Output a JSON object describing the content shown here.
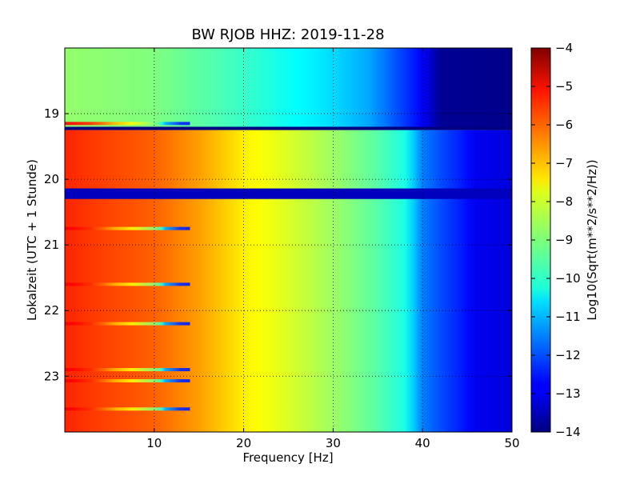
{
  "chart_data": {
    "type": "heatmap",
    "title": "BW RJOB HHZ: 2019-11-28",
    "xlabel": "Frequency [Hz]",
    "ylabel": "Lokalzeit (UTC + 1 Stunde)",
    "colorbar_label": "Log10(Sqrt(m**2/s**2/Hz))",
    "colormap": "jet",
    "xlim": [
      0,
      50
    ],
    "ylim": [
      18.0,
      23.85
    ],
    "y_inverted": true,
    "grid": true,
    "x_ticks": [
      10,
      20,
      30,
      40,
      50
    ],
    "x_tick_labels": [
      "10",
      "20",
      "30",
      "40",
      "50"
    ],
    "y_ticks": [
      19,
      20,
      21,
      22,
      23
    ],
    "y_tick_labels": [
      "19",
      "20",
      "21",
      "22",
      "23"
    ],
    "colorbar_range": [
      -14,
      -4
    ],
    "colorbar_ticks": [
      -4,
      -5,
      -6,
      -7,
      -8,
      -9,
      -10,
      -11,
      -12,
      -13,
      -14
    ],
    "colorbar_tick_labels": [
      "−4",
      "−5",
      "−6",
      "−7",
      "−8",
      "−9",
      "−10",
      "−11",
      "−12",
      "−13",
      "−14"
    ],
    "profile_before_gap": {
      "time_range": [
        18.0,
        19.2
      ],
      "frequency": [
        0,
        10,
        20,
        30,
        34,
        38,
        40,
        42,
        50
      ],
      "value": [
        -8.8,
        -9.0,
        -9.7,
        -10.6,
        -11.1,
        -12.2,
        -12.8,
        -13.8,
        -13.9
      ]
    },
    "profile_after_gap": {
      "time_range": [
        19.25,
        23.85
      ],
      "frequency": [
        0,
        3,
        10,
        15,
        20,
        25,
        30,
        35,
        38,
        40,
        42,
        44,
        46,
        50
      ],
      "value": [
        -5.6,
        -5.8,
        -6.2,
        -6.8,
        -7.6,
        -8.1,
        -8.7,
        -9.4,
        -10.0,
        -11.5,
        -12.0,
        -12.4,
        -12.9,
        -13.1
      ]
    },
    "data_gaps": [
      {
        "time": [
          19.2,
          19.25
        ],
        "value": -14
      },
      {
        "time": [
          20.14,
          20.3
        ],
        "value": -13.4
      }
    ],
    "bright_rows": [
      19.15,
      20.75,
      21.6,
      22.2,
      22.9,
      23.07,
      23.5
    ]
  }
}
